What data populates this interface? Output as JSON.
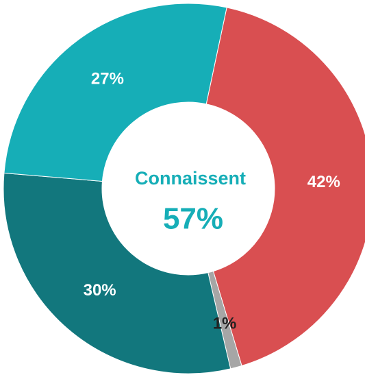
{
  "chart_data": {
    "type": "donut",
    "values": [
      42,
      1,
      30,
      27
    ],
    "value_labels": [
      "42%",
      "1%",
      "30%",
      "27%"
    ],
    "colors": [
      "#d94f51",
      "#a6a6a6",
      "#12777d",
      "#16aeb7"
    ],
    "value_label_colors": [
      "#ffffff",
      "#222222",
      "#ffffff",
      "#ffffff"
    ],
    "center_title": "Connaissent",
    "center_value": "57%"
  }
}
